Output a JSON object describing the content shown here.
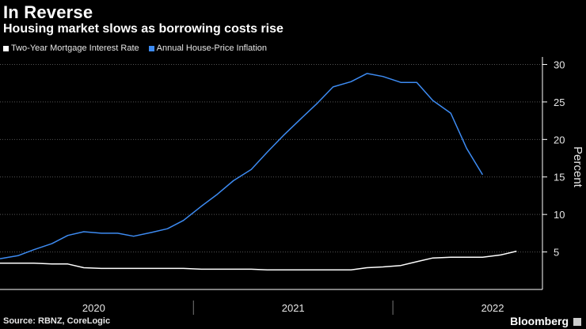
{
  "header": {
    "title": "In Reverse",
    "subtitle": "Housing market slows as borrowing costs rise"
  },
  "footer": {
    "source": "Source: RBNZ, CoreLogic",
    "brand": "Bloomberg"
  },
  "colors": {
    "background": "#000000",
    "mortgage": "#ffffff",
    "inflation": "#3d8bf2",
    "grid": "#555555",
    "axis": "#ffffff"
  },
  "chart_data": {
    "type": "line",
    "title": "In Reverse",
    "ylabel": "Percent",
    "xlabel": "",
    "ylim": [
      0,
      31
    ],
    "yticks": [
      5,
      10,
      15,
      20,
      25,
      30
    ],
    "xlim": [
      2019.53,
      2022.25
    ],
    "xticks": [
      {
        "label": "2020",
        "value": 2020.0
      },
      {
        "label": "2021",
        "value": 2021.0
      },
      {
        "label": "2022",
        "value": 2022.0
      }
    ],
    "xdividers": [
      2020.5,
      2021.5
    ],
    "legend_position": "top-left",
    "series": [
      {
        "name": "Two-Year Mortgage Interest Rate",
        "color": "#ffffff",
        "x": [
          2019.53,
          2019.62,
          2019.7,
          2019.79,
          2019.87,
          2019.95,
          2020.04,
          2020.12,
          2020.2,
          2020.29,
          2020.37,
          2020.45,
          2020.54,
          2020.62,
          2020.7,
          2020.79,
          2020.87,
          2020.95,
          2021.04,
          2021.12,
          2021.2,
          2021.29,
          2021.37,
          2021.45,
          2021.54,
          2021.62,
          2021.7,
          2021.79,
          2021.87,
          2021.95,
          2022.04,
          2022.12
        ],
        "values": [
          3.5,
          3.5,
          3.5,
          3.4,
          3.4,
          2.9,
          2.8,
          2.8,
          2.8,
          2.8,
          2.8,
          2.8,
          2.7,
          2.7,
          2.7,
          2.7,
          2.6,
          2.6,
          2.6,
          2.6,
          2.6,
          2.6,
          2.9,
          3.0,
          3.2,
          3.7,
          4.2,
          4.3,
          4.3,
          4.3,
          4.6,
          5.1
        ]
      },
      {
        "name": "Annual House-Price Inflation",
        "color": "#3d8bf2",
        "x": [
          2019.53,
          2019.62,
          2019.7,
          2019.79,
          2019.87,
          2019.95,
          2020.04,
          2020.12,
          2020.2,
          2020.29,
          2020.37,
          2020.45,
          2020.54,
          2020.62,
          2020.7,
          2020.79,
          2020.87,
          2020.95,
          2021.04,
          2021.12,
          2021.2,
          2021.29,
          2021.37,
          2021.45,
          2021.54,
          2021.62,
          2021.7,
          2021.79,
          2021.87,
          2021.95,
          2022.04,
          2022.12,
          2022.2
        ],
        "values": [
          4.1,
          4.5,
          5.3,
          6.1,
          7.2,
          7.7,
          7.5,
          7.5,
          7.1,
          7.6,
          8.1,
          9.2,
          11.1,
          12.7,
          14.5,
          16.0,
          18.3,
          20.5,
          22.8,
          24.8,
          27.0,
          27.7,
          28.8,
          28.4,
          27.6,
          27.6,
          25.2,
          23.5,
          18.8,
          15.3,
          null,
          null,
          null
        ]
      }
    ]
  }
}
